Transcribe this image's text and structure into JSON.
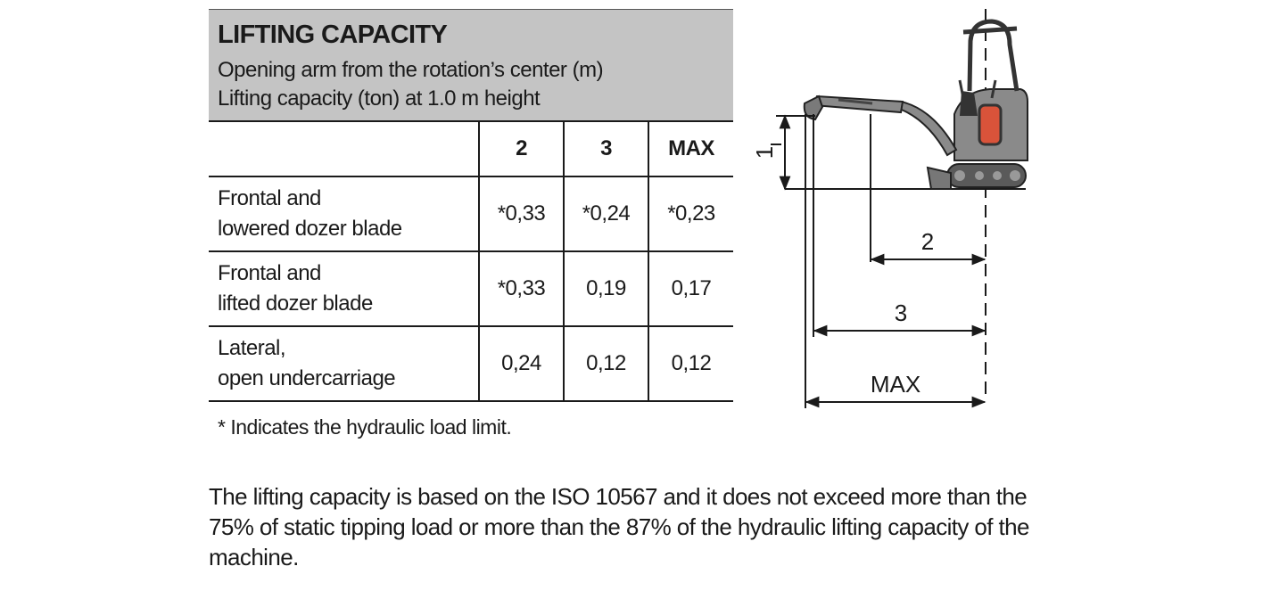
{
  "header": {
    "title": "LIFTING CAPACITY",
    "subtitle_line1": "Opening arm from the rotation’s center (m)",
    "subtitle_line2": "Lifting capacity (ton) at 1.0 m height"
  },
  "table": {
    "columns": [
      "2",
      "3",
      "MAX"
    ],
    "rows": [
      {
        "label_line1": "Frontal and",
        "label_line2": "lowered dozer blade",
        "values": [
          "*0,33",
          "*0,24",
          "*0,23"
        ]
      },
      {
        "label_line1": "Frontal and",
        "label_line2": "lifted dozer blade",
        "values": [
          "*0,33",
          "0,19",
          "0,17"
        ]
      },
      {
        "label_line1": "Lateral,",
        "label_line2": "open undercarriage",
        "values": [
          "0,24",
          "0,12",
          "0,12"
        ]
      }
    ]
  },
  "footnote": "* Indicates the hydraulic load limit.",
  "note": "The lifting capacity is based on the ISO 10567 and it does not exceed more than the 75% of static tipping load or more than the 87% of the hydraulic lifting capacity of the machine.",
  "diagram": {
    "height_label": "1",
    "dim_labels": [
      "2",
      "3",
      "MAX"
    ],
    "accent_color": "#d9533a",
    "machine_color": "#8a8a8a"
  }
}
